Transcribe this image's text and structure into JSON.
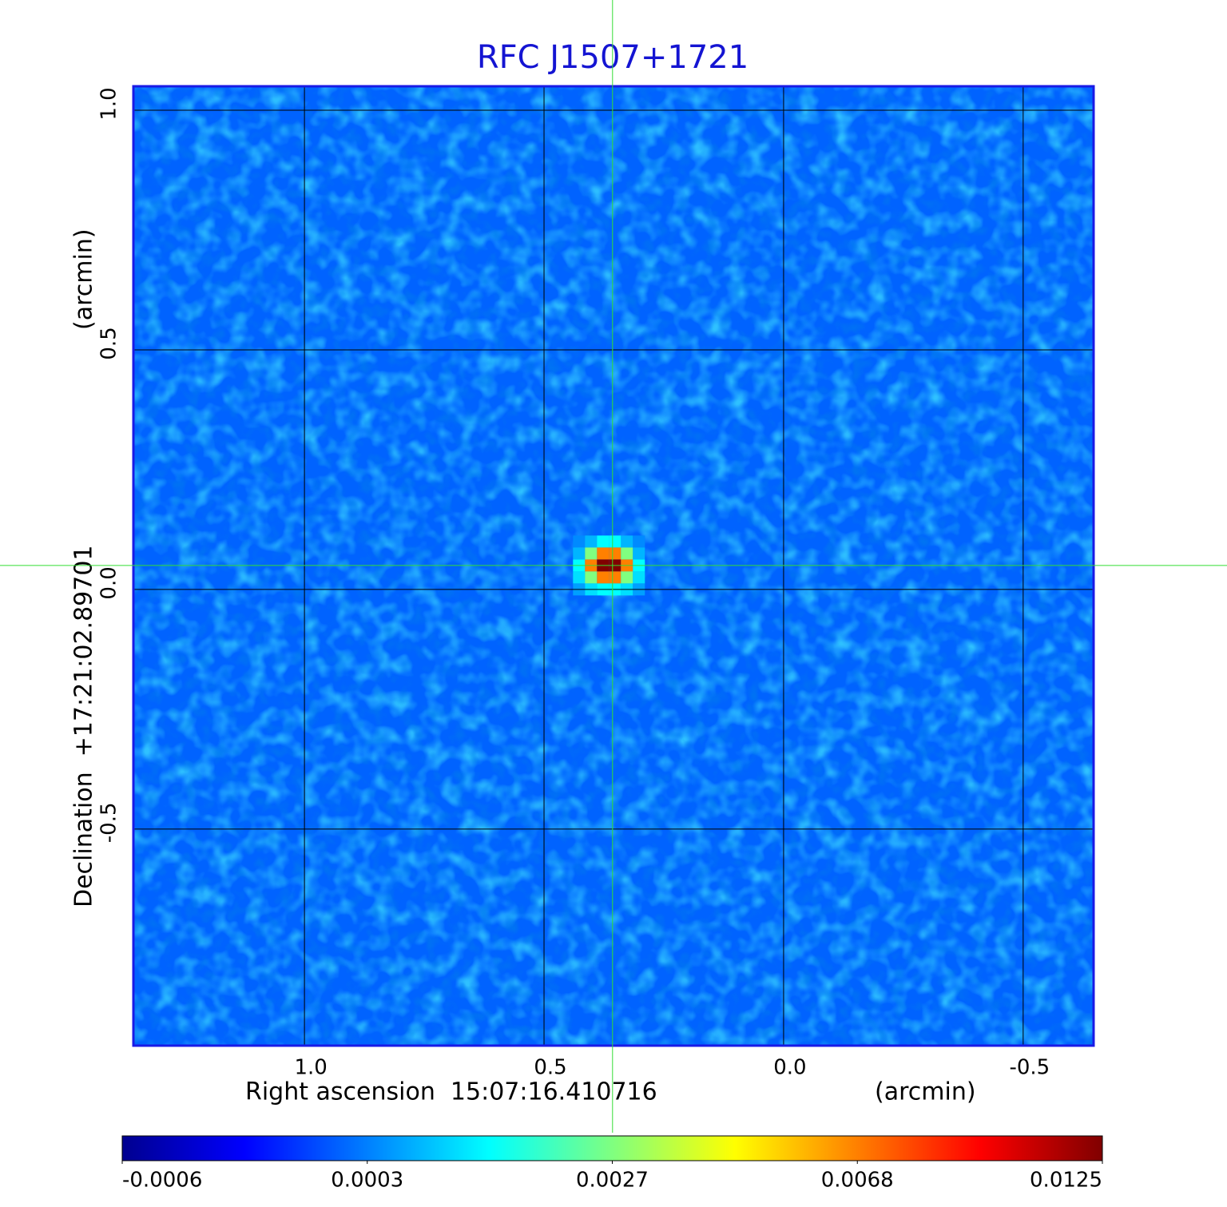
{
  "chart_data": {
    "type": "image",
    "title": "RFC J1507+1721",
    "xlabel": "Right ascension  15:07:16.410716",
    "xunit": "(arcmin)",
    "ylabel": "Declination  +17:21:02.89701",
    "yunit": "(arcmin)",
    "xlim": [
      1.357,
      -0.647
    ],
    "ylim": [
      1.05,
      -0.952
    ],
    "xticks": [
      {
        "value": 1,
        "label": "1.0"
      },
      0.5,
      {
        "value": 0,
        "label": "0.0"
      },
      -0.5
    ],
    "yticks": [
      {
        "value": 1,
        "label": "1.0"
      },
      0.5,
      {
        "value": 0,
        "label": "0.0"
      },
      -0.5
    ],
    "grid": true,
    "colormap": "jet",
    "colorbar_ticks": [
      -0.0006,
      0.0003,
      0.0027,
      0.0068,
      0.0125
    ],
    "background_level": 0.0002,
    "marker": {
      "x": 0.357,
      "y": 0.05
    },
    "heatmap": {
      "x": [
        0.427,
        0.402,
        0.377,
        0.352,
        0.327,
        0.302
      ],
      "y": [
        0.1,
        0.075,
        0.05,
        0.025,
        0.0
      ],
      "values": [
        [
          0.0004,
          0.0008,
          0.0015,
          0.0015,
          0.0008,
          0.0004
        ],
        [
          0.0008,
          0.0027,
          0.0068,
          0.0068,
          0.0027,
          0.0008
        ],
        [
          0.0015,
          0.0068,
          0.0125,
          0.0125,
          0.0068,
          0.0015
        ],
        [
          0.0012,
          0.0027,
          0.0068,
          0.0068,
          0.0027,
          0.0012
        ],
        [
          0.0006,
          0.0012,
          0.0015,
          0.0015,
          0.0012,
          0.0006
        ]
      ]
    }
  }
}
